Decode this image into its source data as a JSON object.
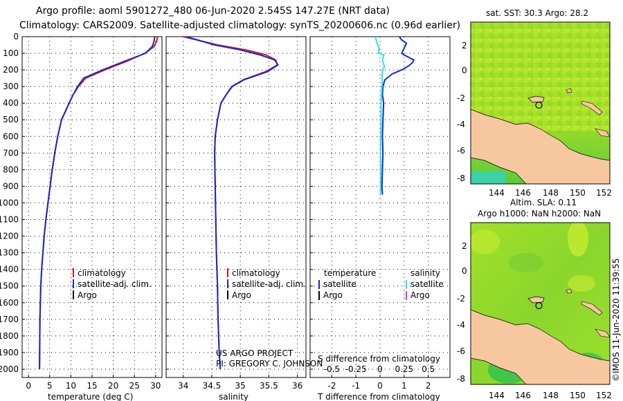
{
  "header": {
    "title_line1": "Argo profile: aoml 5901272_480 06-Jun-2020 2.545S 147.27E (NRT data)",
    "title_line2": "Climatology: CARS2009. Satellite-adjusted climatology: synTS_20200606.nc (0.96d earlier)"
  },
  "colors": {
    "climatology": "#e01010",
    "satellite_adj": "#1428d2",
    "argo": "#000000",
    "sal_satellite": "#22e6e6",
    "sal_argo": "#ff22ff",
    "land": "#f7c7a0",
    "sea_water": "#30d060"
  },
  "depth_axis": {
    "ylim": [
      0,
      2050
    ],
    "ticks": [
      "0",
      "100",
      "200",
      "300",
      "400",
      "500",
      "600",
      "700",
      "800",
      "900",
      "1000",
      "1100",
      "1200",
      "1300",
      "1400",
      "1500",
      "1600",
      "1700",
      "1800",
      "1900",
      "2000"
    ]
  },
  "chart_data": [
    {
      "type": "line",
      "id": "temperature",
      "xlabel": "temperature (deg C)",
      "ylabel": "",
      "xlim": [
        -1.5,
        31.5
      ],
      "ylim": [
        0,
        2050
      ],
      "xticks": [
        0,
        5,
        10,
        15,
        20,
        25,
        30
      ],
      "xtick_labels": [
        "0",
        "5",
        "10",
        "15",
        "20",
        "25",
        "30"
      ],
      "legend": [
        "climatology",
        "satellite-adj. clim.",
        "Argo"
      ],
      "series": [
        {
          "name": "climatology",
          "color": "#e01010",
          "x": [
            30.5,
            30.2,
            29.6,
            27.5,
            23.0,
            18.0,
            13.5,
            11.8,
            10.5,
            9.6,
            8.7,
            7.8,
            6.9,
            6.2,
            5.6,
            5.1,
            4.6,
            4.1,
            3.7,
            3.4,
            3.1,
            2.9,
            2.7,
            2.6
          ],
          "y": [
            0,
            30,
            60,
            100,
            150,
            200,
            250,
            300,
            350,
            400,
            450,
            500,
            600,
            700,
            800,
            900,
            1000,
            1100,
            1200,
            1300,
            1400,
            1500,
            1700,
            2000
          ]
        },
        {
          "name": "satellite-adj. clim.",
          "color": "#1428d2",
          "x": [
            29.8,
            29.6,
            29.2,
            27.6,
            22.5,
            17.5,
            13.0,
            11.6,
            10.5,
            9.6,
            8.7,
            7.8,
            6.9,
            6.2,
            5.6,
            5.1,
            4.6,
            4.1,
            3.7,
            3.4,
            3.1,
            2.9,
            2.7,
            2.6
          ],
          "y": [
            0,
            30,
            60,
            100,
            150,
            200,
            250,
            300,
            350,
            400,
            450,
            500,
            600,
            700,
            800,
            900,
            1000,
            1100,
            1200,
            1300,
            1400,
            1500,
            1700,
            2000
          ]
        }
      ]
    },
    {
      "type": "line",
      "id": "salinity",
      "xlabel": "salinity",
      "ylabel": "",
      "xlim": [
        33.7,
        36.15
      ],
      "ylim": [
        0,
        2050
      ],
      "xticks": [
        34,
        34.5,
        35,
        35.5,
        36
      ],
      "xtick_labels": [
        "34",
        "34.5",
        "35",
        "35.5",
        "36"
      ],
      "legend": [
        "climatology",
        "satellite-adj. clim.",
        "Argo"
      ],
      "series": [
        {
          "name": "climatology",
          "color": "#e01010",
          "x": [
            34.0,
            34.6,
            35.1,
            35.45,
            35.62,
            35.65,
            35.45,
            35.05,
            34.85,
            34.75,
            34.66,
            34.6,
            34.56,
            34.55,
            34.56,
            34.57,
            34.58,
            34.6,
            34.61,
            34.63,
            34.65
          ],
          "y": [
            0,
            50,
            80,
            110,
            140,
            170,
            210,
            260,
            300,
            350,
            400,
            500,
            600,
            700,
            900,
            1100,
            1300,
            1500,
            1700,
            1900,
            2000
          ]
        },
        {
          "name": "satellite-adj. clim.",
          "color": "#1428d2",
          "x": [
            34.05,
            34.55,
            35.0,
            35.35,
            35.6,
            35.66,
            35.48,
            35.06,
            34.86,
            34.75,
            34.66,
            34.6,
            34.56,
            34.55,
            34.56,
            34.57,
            34.58,
            34.6,
            34.61,
            34.63,
            34.65
          ],
          "y": [
            0,
            50,
            80,
            110,
            140,
            170,
            210,
            260,
            300,
            350,
            400,
            500,
            600,
            700,
            900,
            1100,
            1300,
            1500,
            1700,
            1900,
            2000
          ]
        }
      ],
      "annotations": [
        "US ARGO PROJECT",
        "PI: GREGORY C. JOHNSON"
      ]
    },
    {
      "type": "line",
      "id": "differences",
      "xlabel": "T difference from climatology",
      "ylabel": "",
      "xlim": [
        -2.9,
        2.9
      ],
      "ylim": [
        0,
        2050
      ],
      "xticks": [
        -2,
        -1,
        0,
        1,
        2
      ],
      "xtick_labels": [
        "-2",
        "-1",
        "0",
        "1",
        "2"
      ],
      "secondary_xlabel": "S difference from climatology",
      "secondary_xticks": [
        -0.5,
        -0.25,
        0,
        0.25,
        0.5
      ],
      "secondary_xtick_labels": [
        "-0.5",
        "-0.25",
        "0",
        "0.25",
        "0.5"
      ],
      "secondary_xlim": [
        -0.725,
        0.725
      ],
      "legend_headers": [
        "temperature",
        "salinity"
      ],
      "legend_temperature": [
        "satellite",
        "Argo"
      ],
      "legend_salinity": [
        "satellite",
        "Argo"
      ],
      "series": [
        {
          "name": "T satellite",
          "color": "#1428d2",
          "x": [
            0.8,
            0.9,
            1.1,
            1.0,
            0.9,
            1.0,
            1.2,
            1.4,
            1.35,
            1.2,
            0.9,
            0.5,
            0.2,
            0.12,
            0.1,
            0.15,
            0.12,
            0.1,
            0.12,
            0.1,
            0.08,
            0.1
          ],
          "y": [
            0,
            20,
            40,
            70,
            100,
            110,
            125,
            140,
            155,
            175,
            200,
            225,
            260,
            300,
            350,
            400,
            500,
            600,
            700,
            800,
            900,
            950
          ]
        },
        {
          "name": "S satellite",
          "color": "#22e6e6",
          "x": [
            -0.05,
            -0.03,
            -0.01,
            -0.015,
            0.04,
            0.025,
            0.045,
            0.03,
            0.02,
            0.025,
            0.02,
            0.015,
            0.01,
            0.01,
            0.008,
            0.006,
            0.008,
            0.005
          ],
          "y": [
            0,
            40,
            70,
            100,
            110,
            140,
            180,
            200,
            230,
            260,
            300,
            350,
            400,
            500,
            600,
            700,
            800,
            950
          ]
        }
      ]
    }
  ],
  "maps": {
    "sst": {
      "title": "sat. SST: 30.3 Argo: 28.2",
      "footer": "Altim. SLA: 0.11",
      "lon_ticks": [
        "144",
        "146",
        "148",
        "150",
        "152"
      ],
      "lat_ticks": [
        "2",
        "0",
        "-2",
        "-4",
        "-6",
        "-8"
      ],
      "marker_lon": 147.27,
      "marker_lat": -2.545
    },
    "altimetry": {
      "title": "Argo h1000: NaN h2000: NaN",
      "lon_ticks": [
        "144",
        "146",
        "148",
        "150",
        "152"
      ],
      "lat_ticks": [
        "2",
        "0",
        "-2",
        "-4",
        "-6",
        "-8"
      ],
      "marker_lon": 147.27,
      "marker_lat": -2.545
    },
    "credit": "©IMOS 11-Jun-2020 11:39:55"
  }
}
